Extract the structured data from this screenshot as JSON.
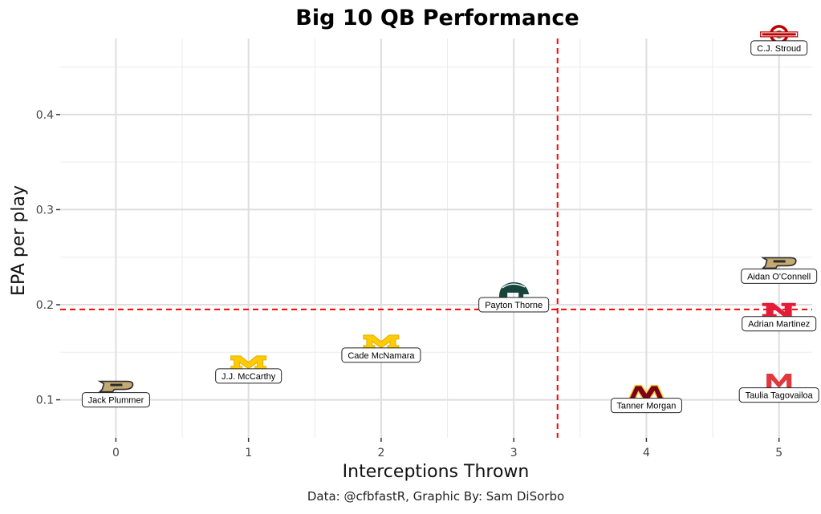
{
  "chart_data": {
    "type": "scatter",
    "title": "Big 10 QB Performance",
    "xlabel": "Interceptions Thrown",
    "ylabel": "EPA per play",
    "caption": "Data: @cfbfastR, Graphic By: Sam DiSorbo",
    "xlim": [
      -0.42,
      5.25
    ],
    "ylim": [
      0.06,
      0.48
    ],
    "x_ticks": [
      0,
      1,
      2,
      3,
      4,
      5
    ],
    "y_ticks": [
      0.1,
      0.2,
      0.3,
      0.4
    ],
    "y_tick_labels": [
      "0.1",
      "0.2",
      "0.3",
      "0.4"
    ],
    "grid": true,
    "reference_lines": {
      "vertical_x": 3.33,
      "horizontal_y": 0.195,
      "color": "#ff0000"
    },
    "points": [
      {
        "player": "Jack Plummer",
        "school": "Purdue",
        "x": 0,
        "y": 0.1,
        "logo": "purdue-p-logo",
        "logo_color": "#c4aa72",
        "logo_dark": "#2b2b2b"
      },
      {
        "player": "J.J. McCarthy",
        "school": "Michigan",
        "x": 1,
        "y": 0.125,
        "logo": "michigan-block-m-logo",
        "logo_color": "#ffcb05",
        "logo_dark": "#2b2b2b"
      },
      {
        "player": "Cade McNamara",
        "school": "Michigan",
        "x": 2,
        "y": 0.147,
        "logo": "michigan-block-m-logo",
        "logo_color": "#ffcb05",
        "logo_dark": "#2b2b2b"
      },
      {
        "player": "Payton Thorne",
        "school": "Michigan State",
        "x": 3,
        "y": 0.2,
        "logo": "spartan-helmet-logo",
        "logo_color": "#18453b",
        "logo_dark": "#18453b"
      },
      {
        "player": "Tanner Morgan",
        "school": "Minnesota",
        "x": 4,
        "y": 0.094,
        "logo": "minnesota-m-logo",
        "logo_color": "#7a0019",
        "logo_dark": "#ffcc33"
      },
      {
        "player": "C.J. Stroud",
        "school": "Ohio State",
        "x": 5,
        "y": 0.47,
        "logo": "ohio-state-logo",
        "logo_color": "#bb0000",
        "logo_dark": "#666666"
      },
      {
        "player": "Aidan O'Connell",
        "school": "Purdue",
        "x": 5,
        "y": 0.23,
        "logo": "purdue-p-logo",
        "logo_color": "#c4aa72",
        "logo_dark": "#2b2b2b"
      },
      {
        "player": "Adrian Martinez",
        "school": "Nebraska",
        "x": 5,
        "y": 0.18,
        "logo": "nebraska-n-logo",
        "logo_color": "#e41c38",
        "logo_dark": "#e41c38"
      },
      {
        "player": "Taulia Tagovailoa",
        "school": "Maryland",
        "x": 5,
        "y": 0.105,
        "logo": "maryland-m-logo",
        "logo_color": "#e03a3e",
        "logo_dark": "#e03a3e"
      }
    ]
  }
}
